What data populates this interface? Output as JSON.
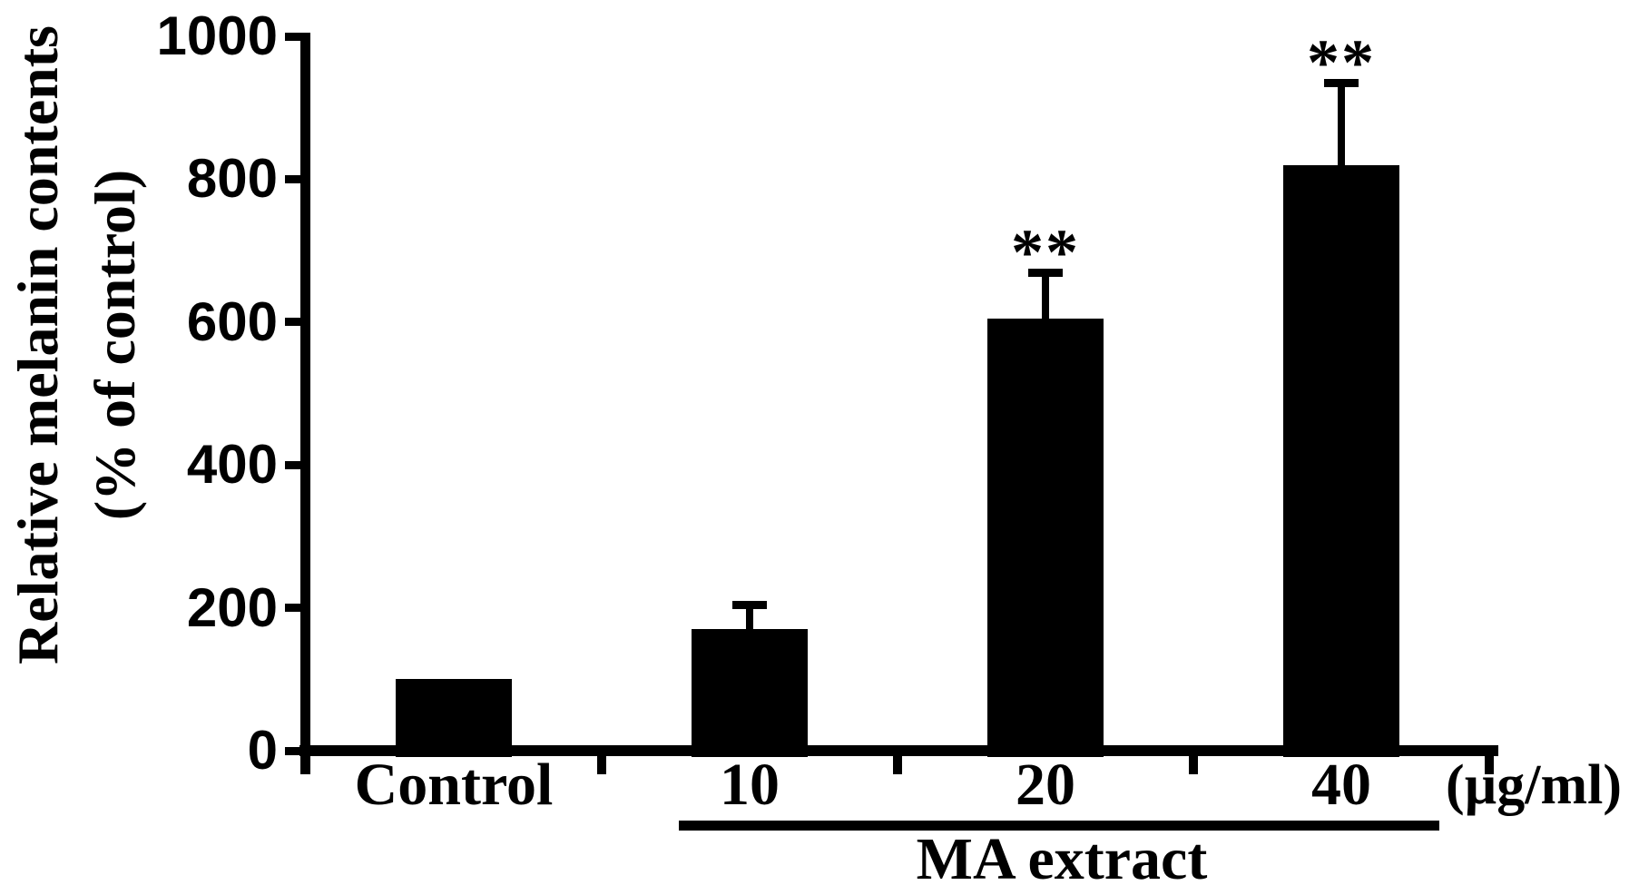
{
  "figure": {
    "background": "#ffffff",
    "ink_color": "#000000"
  },
  "chart_data": {
    "type": "bar",
    "title": "",
    "categories": [
      "Control",
      "10",
      "20",
      "40"
    ],
    "values": [
      100,
      170,
      605,
      820
    ],
    "error_upper": [
      0,
      40,
      70,
      120
    ],
    "significance": [
      "",
      "",
      "**",
      "**"
    ],
    "ylabel_line1": "Relative melanin contents",
    "ylabel_line2": "(% of control)",
    "x_unit_label": "(µg/ml)",
    "group_label": "MA extract",
    "group_span_categories": [
      "10",
      "20",
      "40"
    ],
    "yticks": [
      0,
      200,
      400,
      600,
      800,
      1000
    ],
    "ylim": [
      0,
      1000
    ],
    "bar_color": "#000000",
    "error_bar_style": "upper-cap",
    "grid": false,
    "legend": "none"
  }
}
